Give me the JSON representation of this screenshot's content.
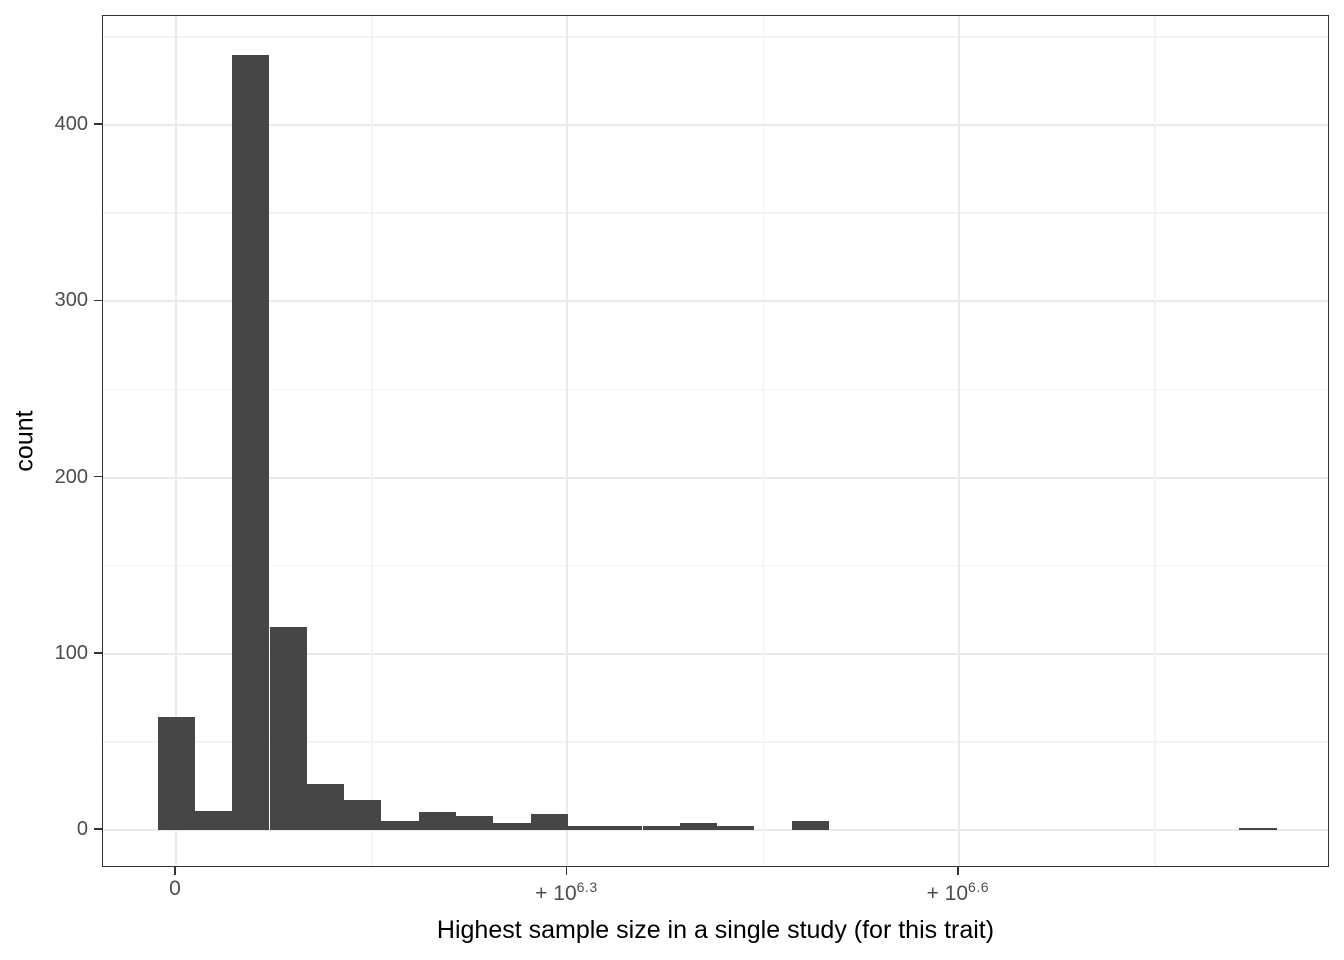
{
  "chart_data": {
    "type": "bar",
    "subtype": "histogram",
    "title": "",
    "xlabel": "Highest sample size in a single study (for this trait)",
    "ylabel": "count",
    "x_scale": "pseudo-log10 (signed log scale: 0, +10^6.3, +10^6.6)",
    "x_ticks": [
      {
        "base": "0",
        "sup": ""
      },
      {
        "base": "+ 10",
        "sup": "6.3"
      },
      {
        "base": "+ 10",
        "sup": "6.6"
      }
    ],
    "y_ticks": [
      0,
      100,
      200,
      300,
      400
    ],
    "ylim": [
      0,
      462
    ],
    "grid": "major+minor, light grey on white, full black panel border",
    "legend": "none",
    "n_bins": 30,
    "bin_counts": [
      64,
      11,
      440,
      115,
      26,
      17,
      5,
      10,
      8,
      4,
      9,
      2,
      2,
      2,
      4,
      2,
      0,
      5,
      0,
      0,
      0,
      0,
      0,
      0,
      0,
      0,
      0,
      0,
      0,
      1
    ],
    "colors": {
      "bar_fill": "#464646",
      "panel_border": "#333333",
      "grid_major": "#e9e9e9",
      "grid_minor": "#f3f3f3",
      "tick_label": "#4d4d4d",
      "axis_title": "#000000",
      "background": "#ffffff"
    }
  }
}
